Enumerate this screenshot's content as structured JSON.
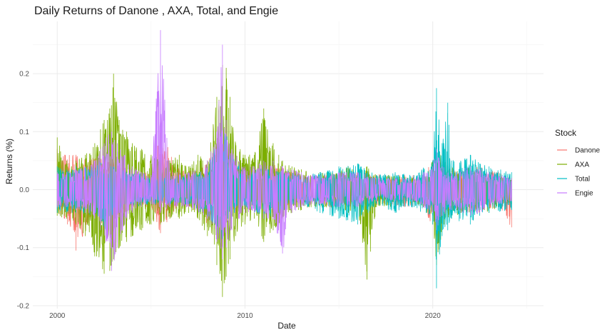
{
  "chart_data": {
    "type": "line",
    "title": "Daily Returns of Danone , AXA, Total, and Engie",
    "xlabel": "Date",
    "ylabel": "Returns (%)",
    "x_ticks": [
      {
        "value": 2000,
        "label": "2000"
      },
      {
        "value": 2010,
        "label": "2010"
      },
      {
        "value": 2020,
        "label": "2020"
      }
    ],
    "y_ticks": [
      {
        "value": -0.2,
        "label": "-0.2"
      },
      {
        "value": -0.1,
        "label": "-0.1"
      },
      {
        "value": 0.0,
        "label": "0.0"
      },
      {
        "value": 0.1,
        "label": "0.1"
      },
      {
        "value": 0.2,
        "label": "0.2"
      }
    ],
    "xlim": [
      1998.7,
      2025.9
    ],
    "ylim": [
      -0.205,
      0.29
    ],
    "grid": true,
    "legend": {
      "title": "Stock",
      "position": "right"
    },
    "series": [
      {
        "name": "Danone",
        "color": "#F8766D",
        "x": [
          2000.0,
          2000.4,
          2001.0,
          2001.9,
          2002.5,
          2003.0,
          2004.0,
          2005.0,
          2005.5,
          2006.5,
          2007.5,
          2008.0,
          2008.8,
          2009.5,
          2010.5,
          2011.5,
          2012.5,
          2013.5,
          2014.5,
          2015.5,
          2016.5,
          2017.5,
          2018.5,
          2019.5,
          2020.2,
          2020.8,
          2021.5,
          2022.5,
          2023.5,
          2024.2
        ],
        "max": [
          0.07,
          0.06,
          0.06,
          0.055,
          0.06,
          0.05,
          0.03,
          0.03,
          0.098,
          0.035,
          0.035,
          0.05,
          0.09,
          0.045,
          0.03,
          0.045,
          0.03,
          0.025,
          0.025,
          0.035,
          0.03,
          0.025,
          0.025,
          0.025,
          0.06,
          0.04,
          0.035,
          0.04,
          0.03,
          0.02
        ],
        "min": [
          -0.04,
          -0.05,
          -0.105,
          -0.05,
          -0.06,
          -0.06,
          -0.03,
          -0.03,
          -0.075,
          -0.03,
          -0.03,
          -0.06,
          -0.07,
          -0.04,
          -0.03,
          -0.04,
          -0.03,
          -0.025,
          -0.03,
          -0.03,
          -0.03,
          -0.025,
          -0.03,
          -0.03,
          -0.08,
          -0.04,
          -0.035,
          -0.04,
          -0.03,
          -0.065
        ]
      },
      {
        "name": "AXA",
        "color": "#7CAE00",
        "x": [
          2000.0,
          2000.5,
          2001.0,
          2001.5,
          2002.0,
          2002.5,
          2002.8,
          2003.0,
          2003.3,
          2003.7,
          2004.0,
          2004.5,
          2005.0,
          2005.5,
          2006.0,
          2006.5,
          2007.0,
          2007.5,
          2008.0,
          2008.5,
          2008.8,
          2009.0,
          2009.2,
          2009.5,
          2010.0,
          2010.5,
          2011.0,
          2011.5,
          2011.8,
          2012.0,
          2012.5,
          2013.0,
          2014.0,
          2015.0,
          2015.5,
          2016.0,
          2016.5,
          2017.0,
          2018.0,
          2019.0,
          2019.5,
          2020.0,
          2020.2,
          2020.6,
          2021.0,
          2021.5,
          2022.0,
          2022.5,
          2023.0,
          2023.5,
          2024.2
        ],
        "max": [
          0.09,
          0.05,
          0.05,
          0.06,
          0.08,
          0.12,
          0.14,
          0.2,
          0.12,
          0.1,
          0.08,
          0.07,
          0.06,
          0.055,
          0.05,
          0.06,
          0.04,
          0.06,
          0.05,
          0.16,
          0.215,
          0.21,
          0.16,
          0.08,
          0.06,
          0.06,
          0.14,
          0.08,
          0.06,
          0.05,
          0.04,
          0.035,
          0.03,
          0.03,
          0.04,
          0.03,
          0.04,
          0.025,
          0.025,
          0.02,
          0.025,
          0.05,
          0.07,
          0.05,
          0.04,
          0.03,
          0.04,
          0.03,
          0.03,
          0.02,
          0.02
        ],
        "min": [
          -0.045,
          -0.05,
          -0.06,
          -0.08,
          -0.115,
          -0.145,
          -0.14,
          -0.12,
          -0.1,
          -0.09,
          -0.08,
          -0.07,
          -0.06,
          -0.06,
          -0.05,
          -0.05,
          -0.04,
          -0.05,
          -0.08,
          -0.13,
          -0.185,
          -0.15,
          -0.12,
          -0.08,
          -0.06,
          -0.05,
          -0.09,
          -0.07,
          -0.06,
          -0.05,
          -0.04,
          -0.035,
          -0.03,
          -0.035,
          -0.04,
          -0.03,
          -0.155,
          -0.03,
          -0.03,
          -0.025,
          -0.03,
          -0.06,
          -0.13,
          -0.06,
          -0.05,
          -0.04,
          -0.04,
          -0.035,
          -0.04,
          -0.03,
          -0.025
        ]
      },
      {
        "name": "Total",
        "color": "#00BFC4",
        "x": [
          2000.0,
          2001.0,
          2002.0,
          2002.6,
          2003.0,
          2004.0,
          2005.0,
          2006.0,
          2007.0,
          2008.0,
          2008.8,
          2009.3,
          2010.0,
          2011.0,
          2012.0,
          2013.0,
          2014.0,
          2015.0,
          2016.0,
          2017.0,
          2018.0,
          2019.0,
          2020.0,
          2020.2,
          2020.5,
          2020.8,
          2021.0,
          2022.0,
          2022.5,
          2023.0,
          2024.2
        ],
        "max": [
          0.04,
          0.04,
          0.04,
          0.06,
          0.04,
          0.03,
          0.025,
          0.025,
          0.025,
          0.04,
          0.12,
          0.06,
          0.03,
          0.04,
          0.035,
          0.025,
          0.03,
          0.04,
          0.045,
          0.025,
          0.03,
          0.025,
          0.05,
          0.175,
          0.08,
          0.15,
          0.05,
          0.06,
          0.045,
          0.04,
          0.03
        ],
        "min": [
          -0.04,
          -0.04,
          -0.045,
          -0.07,
          -0.04,
          -0.03,
          -0.025,
          -0.025,
          -0.025,
          -0.05,
          -0.09,
          -0.05,
          -0.03,
          -0.05,
          -0.04,
          -0.025,
          -0.04,
          -0.05,
          -0.06,
          -0.025,
          -0.04,
          -0.03,
          -0.06,
          -0.17,
          -0.08,
          -0.07,
          -0.05,
          -0.06,
          -0.045,
          -0.04,
          -0.035
        ]
      },
      {
        "name": "Engie",
        "color": "#C77CFF",
        "x": [
          2000.0,
          2000.5,
          2001.0,
          2001.5,
          2002.0,
          2002.3,
          2002.6,
          2002.9,
          2003.2,
          2003.6,
          2004.0,
          2004.5,
          2005.0,
          2005.5,
          2006.0,
          2007.0,
          2008.0,
          2008.5,
          2008.8,
          2009.0,
          2009.3,
          2009.7,
          2010.0,
          2010.5,
          2011.0,
          2011.5,
          2012.0,
          2012.5,
          2013.0,
          2014.0,
          2015.0,
          2016.0,
          2017.0,
          2018.0,
          2019.0,
          2020.0,
          2020.2,
          2020.5,
          2021.0,
          2022.0,
          2022.5,
          2023.0,
          2024.2
        ],
        "max": [
          0.03,
          0.03,
          0.035,
          0.04,
          0.05,
          0.07,
          0.09,
          0.1,
          0.08,
          0.06,
          0.04,
          0.03,
          0.025,
          0.275,
          0.03,
          0.03,
          0.05,
          0.1,
          0.25,
          0.12,
          0.07,
          0.05,
          0.04,
          0.04,
          0.05,
          0.05,
          0.04,
          0.035,
          0.03,
          0.025,
          0.03,
          0.03,
          0.02,
          0.02,
          0.02,
          0.04,
          0.07,
          0.04,
          0.03,
          0.04,
          0.035,
          0.03,
          0.02
        ],
        "min": [
          -0.03,
          -0.03,
          -0.035,
          -0.04,
          -0.05,
          -0.07,
          -0.09,
          -0.14,
          -0.1,
          -0.06,
          -0.04,
          -0.03,
          -0.025,
          -0.04,
          -0.03,
          -0.03,
          -0.05,
          -0.09,
          -0.12,
          -0.1,
          -0.07,
          -0.05,
          -0.04,
          -0.04,
          -0.05,
          -0.05,
          -0.11,
          -0.04,
          -0.03,
          -0.025,
          -0.03,
          -0.03,
          -0.02,
          -0.02,
          -0.02,
          -0.04,
          -0.07,
          -0.045,
          -0.035,
          -0.045,
          -0.04,
          -0.03,
          -0.02
        ]
      }
    ]
  }
}
